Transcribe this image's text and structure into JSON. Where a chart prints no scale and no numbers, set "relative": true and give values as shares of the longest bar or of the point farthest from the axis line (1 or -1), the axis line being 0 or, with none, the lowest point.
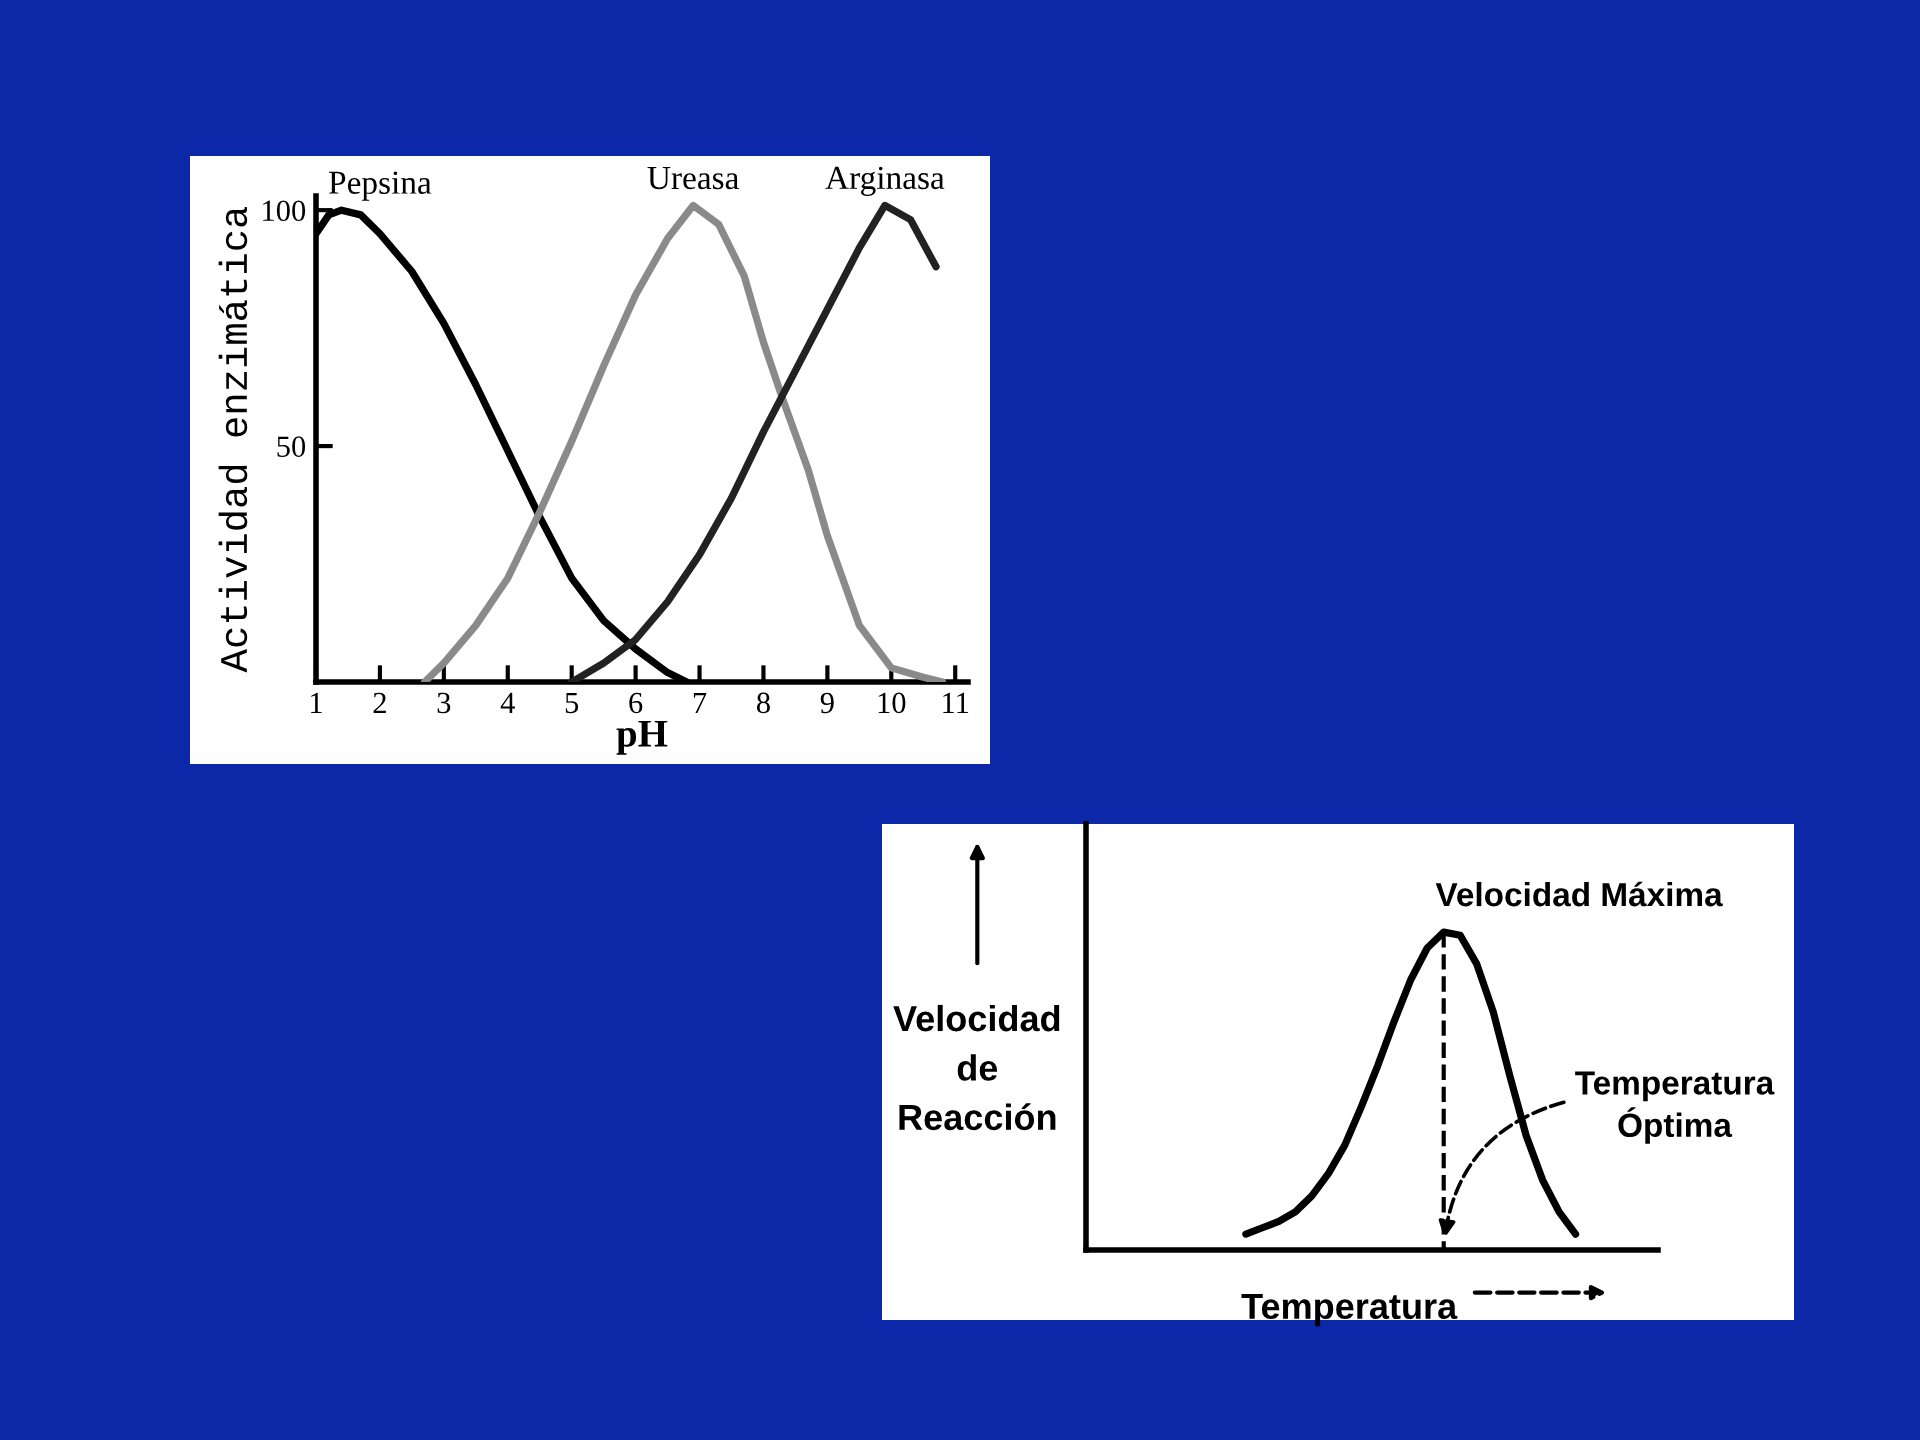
{
  "chart_data": [
    {
      "type": "line",
      "xlabel": "pH",
      "ylabel": "Actividad enzimática",
      "xlim": [
        1,
        11.2
      ],
      "ylim": [
        0,
        103
      ],
      "xticks": [
        1,
        2,
        3,
        4,
        5,
        6,
        7,
        8,
        9,
        10,
        11
      ],
      "yticks": [
        50,
        100
      ],
      "series": [
        {
          "name": "Pepsina",
          "color": "#000000",
          "x": [
            1,
            1.2,
            1.4,
            1.7,
            2,
            2.5,
            3,
            3.5,
            4,
            4.5,
            5,
            5.5,
            6,
            6.5,
            6.8
          ],
          "values": [
            95,
            99,
            100,
            99,
            95,
            87,
            76,
            63,
            49,
            35,
            22,
            13,
            7,
            2,
            0
          ]
        },
        {
          "name": "Ureasa",
          "color": "#8a8a8a",
          "x": [
            2.7,
            3,
            3.5,
            4,
            4.5,
            5,
            5.5,
            6,
            6.5,
            6.9,
            7.3,
            7.7,
            8,
            8.3,
            8.7,
            9,
            9.5,
            10,
            10.5,
            10.8
          ],
          "values": [
            0,
            4,
            12,
            22,
            36,
            51,
            67,
            82,
            94,
            101,
            97,
            86,
            72,
            60,
            45,
            31,
            12,
            3,
            1,
            0
          ]
        },
        {
          "name": "Arginasa",
          "color": "#222222",
          "x": [
            5,
            5.5,
            6,
            6.5,
            7,
            7.5,
            8,
            8.5,
            9,
            9.5,
            9.9,
            10.3,
            10.7
          ],
          "values": [
            0,
            4,
            9,
            17,
            27,
            39,
            53,
            66,
            79,
            92,
            101,
            98,
            88
          ]
        }
      ]
    },
    {
      "type": "line",
      "relative": true,
      "xlabel": "Temperatura",
      "ylabel": "Velocidad\nde\nReacción",
      "categories": [
        null,
        null,
        null,
        null,
        null,
        null,
        null,
        null,
        null,
        null,
        null,
        null,
        null,
        null,
        null,
        null,
        null,
        null,
        null,
        null,
        null
      ],
      "series": [
        {
          "color": "#000000",
          "values": [
            0.05,
            0.07,
            0.09,
            0.12,
            0.17,
            0.24,
            0.33,
            0.45,
            0.58,
            0.72,
            0.85,
            0.95,
            1,
            0.99,
            0.9,
            0.75,
            0.55,
            0.36,
            0.22,
            0.12,
            0.05
          ]
        }
      ],
      "annotations": [
        "Velocidad Máxima",
        "Temperatura\nÓptima"
      ]
    }
  ]
}
